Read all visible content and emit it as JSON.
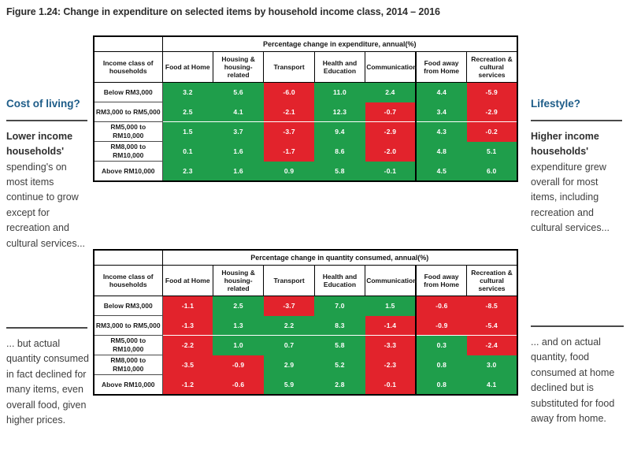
{
  "title": "Figure 1.24: Change in expenditure on selected items by household income class, 2014 – 2016",
  "colors": {
    "positive_green": "#1f9e4b",
    "negative_red": "#e2232c",
    "heading_blue": "#1d5c88"
  },
  "annotations": {
    "left_top": {
      "heading": "Cost of living?",
      "lead": "Lower income households'",
      "body": "spending's on most items continue to grow except for recreation and cultural services..."
    },
    "right_top": {
      "heading": "Lifestyle?",
      "lead": "Higher income households'",
      "body": "expenditure grew overall for most items, including recreation and cultural services..."
    },
    "left_bottom": {
      "body": "... but actual quantity consumed in fact declined for many items, even overall food, given higher prices."
    },
    "right_bottom": {
      "body": "... and on actual quantity, food consumed at home declined but is substituted for food away from home."
    }
  },
  "chart_data": [
    {
      "type": "heatmap",
      "title": "Percentage change in expenditure, annual(%)",
      "row_header": "Income class of households",
      "columns": [
        "Food at Home",
        "Housing & housing-related",
        "Transport",
        "Health and Education",
        "Communication",
        "Food away from Home",
        "Recreation & cultural services"
      ],
      "rows": [
        "Below RM3,000",
        "RM3,000 to RM5,000",
        "RM5,000 to RM10,000",
        "RM8,000 to RM10,000",
        "Above RM10,000"
      ],
      "values": [
        [
          3.2,
          5.6,
          -6.0,
          11.0,
          2.4,
          4.4,
          -5.9
        ],
        [
          2.5,
          4.1,
          -2.1,
          12.3,
          -0.7,
          3.4,
          -2.9
        ],
        [
          1.5,
          3.7,
          -3.7,
          9.4,
          -2.9,
          4.3,
          -0.2
        ],
        [
          0.1,
          1.6,
          -1.7,
          8.6,
          -2.0,
          4.8,
          5.1
        ],
        [
          2.3,
          1.6,
          0.9,
          5.8,
          -0.1,
          4.5,
          6.0
        ]
      ],
      "cell_colors": [
        [
          "g",
          "g",
          "r",
          "g",
          "g",
          "g",
          "r"
        ],
        [
          "g",
          "g",
          "r",
          "g",
          "r",
          "g",
          "r"
        ],
        [
          "g",
          "g",
          "r",
          "g",
          "r",
          "g",
          "r"
        ],
        [
          "g",
          "g",
          "r",
          "g",
          "r",
          "g",
          "g"
        ],
        [
          "g",
          "g",
          "g",
          "g",
          "g",
          "g",
          "g"
        ]
      ]
    },
    {
      "type": "heatmap",
      "title": "Percentage change in quantity consumed, annual(%)",
      "row_header": "Income class of households",
      "columns": [
        "Food at Home",
        "Housing & housing-related",
        "Transport",
        "Health and Education",
        "Communication",
        "Food away from Home",
        "Recreation & cultural services"
      ],
      "rows": [
        "Below RM3,000",
        "RM3,000 to RM5,000",
        "RM5,000 to RM10,000",
        "RM8,000 to RM10,000",
        "Above RM10,000"
      ],
      "values": [
        [
          -1.1,
          2.5,
          -3.7,
          7.0,
          1.5,
          -0.6,
          -8.5
        ],
        [
          -1.3,
          1.3,
          2.2,
          8.3,
          -1.4,
          -0.9,
          -5.4
        ],
        [
          -2.2,
          1.0,
          0.7,
          5.8,
          -3.3,
          0.3,
          -2.4
        ],
        [
          -3.5,
          -0.9,
          2.9,
          5.2,
          -2.3,
          0.8,
          3.0
        ],
        [
          -1.2,
          -0.6,
          5.9,
          2.8,
          -0.1,
          0.8,
          4.1
        ]
      ],
      "cell_colors": [
        [
          "r",
          "g",
          "r",
          "g",
          "g",
          "r",
          "r"
        ],
        [
          "r",
          "g",
          "g",
          "g",
          "r",
          "r",
          "r"
        ],
        [
          "r",
          "g",
          "g",
          "g",
          "r",
          "g",
          "r"
        ],
        [
          "r",
          "r",
          "g",
          "g",
          "r",
          "g",
          "g"
        ],
        [
          "r",
          "r",
          "g",
          "g",
          "r",
          "g",
          "g"
        ]
      ]
    }
  ]
}
